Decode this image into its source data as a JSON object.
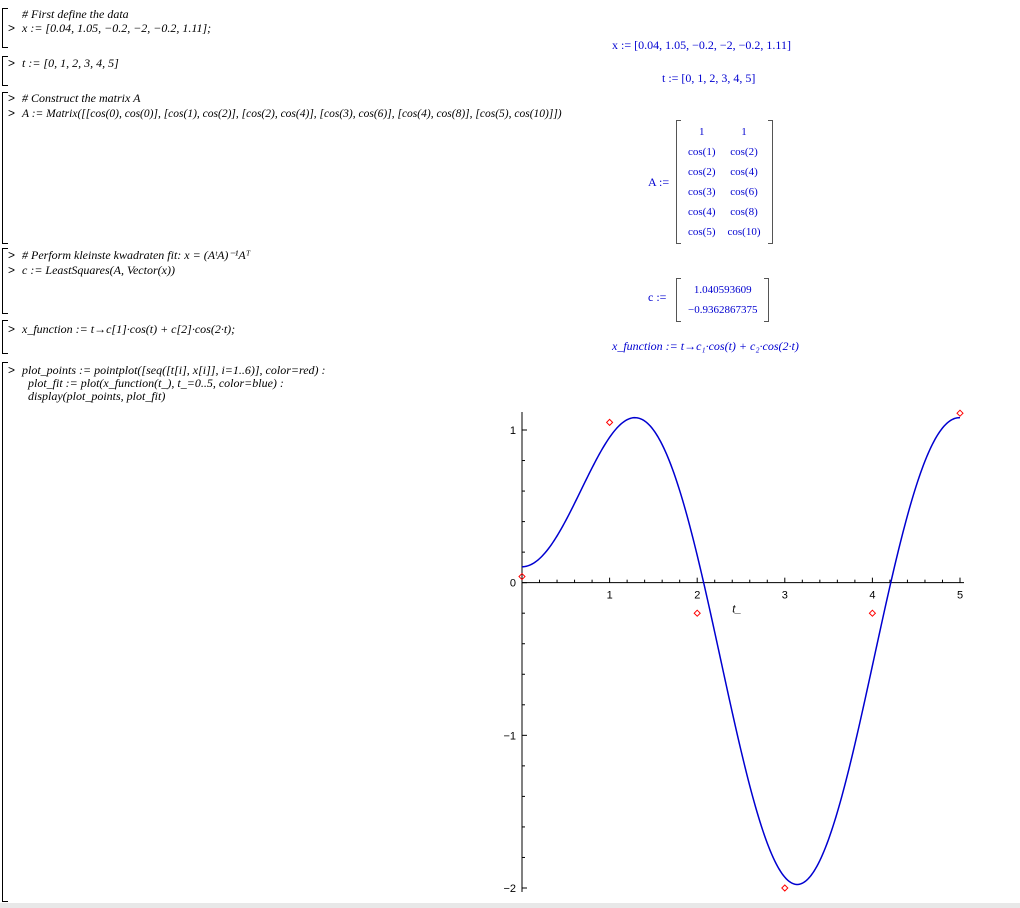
{
  "worksheet": {
    "blocks": [
      {
        "comment": "# First define the data",
        "command": "x := [0.04, 1.05, −0.2, −2, −0.2, 1.11];",
        "output": "x := [0.04, 1.05, −0.2, −2, −0.2, 1.11]"
      },
      {
        "command": "t := [0, 1, 2, 3, 4, 5]",
        "output": "t := [0, 1, 2, 3, 4, 5]"
      },
      {
        "comment": "# Construct the matrix A",
        "command": "A := Matrix([[cos(0), cos(0)], [cos(1), cos(2)], [cos(2), cos(4)], [cos(3), cos(6)], [cos(4), cos(8)], [cos(5), cos(10)]])",
        "output_label": "A :=",
        "matrix": [
          [
            "1",
            "1"
          ],
          [
            "cos(1)",
            "cos(2)"
          ],
          [
            "cos(2)",
            "cos(4)"
          ],
          [
            "cos(3)",
            "cos(6)"
          ],
          [
            "cos(4)",
            "cos(8)"
          ],
          [
            "cos(5)",
            "cos(10)"
          ]
        ]
      },
      {
        "comment": "# Perform kleinste kwadraten fit: x = (AᵗA)⁻¹Aᵀ",
        "command": "c := LeastSquares(A, Vector(x))",
        "output_label": "c :=",
        "vector": [
          "1.040593609",
          "−0.9362867375"
        ]
      },
      {
        "command": "x_function := t→c[1]·cos(t) + c[2]·cos(2·t);",
        "output": "x_function := t→c₁·cos(t) + c₂·cos(2·t)"
      },
      {
        "command_lines": [
          "plot_points := pointplot([seq([t[i], x[i]], i=1..6)], color=red) :",
          "plot_fit := plot(x_function(t_), t_=0..5, color=blue) :",
          "display(plot_points, plot_fit)"
        ]
      }
    ],
    "prompt_symbol": ">"
  },
  "chart_data": {
    "type": "scatter",
    "xlabel": "t_",
    "xlim": [
      0,
      5
    ],
    "ylim": [
      -2,
      1.1
    ],
    "x_ticks": [
      "1",
      "2",
      "3",
      "4",
      "5"
    ],
    "y_ticks": [
      "1",
      "0",
      "−1",
      "−2"
    ],
    "x_tick_values": [
      1,
      2,
      3,
      4,
      5
    ],
    "y_tick_values": [
      1,
      0,
      -1,
      -2
    ],
    "points": {
      "color": "#ff0000",
      "x": [
        0,
        1,
        2,
        3,
        4,
        5
      ],
      "y": [
        0.04,
        1.05,
        -0.2,
        -2,
        -0.2,
        1.11
      ]
    },
    "curve": {
      "color": "#0000d0",
      "c1": 1.040593609,
      "c2": -0.9362867375
    },
    "grid": false
  }
}
